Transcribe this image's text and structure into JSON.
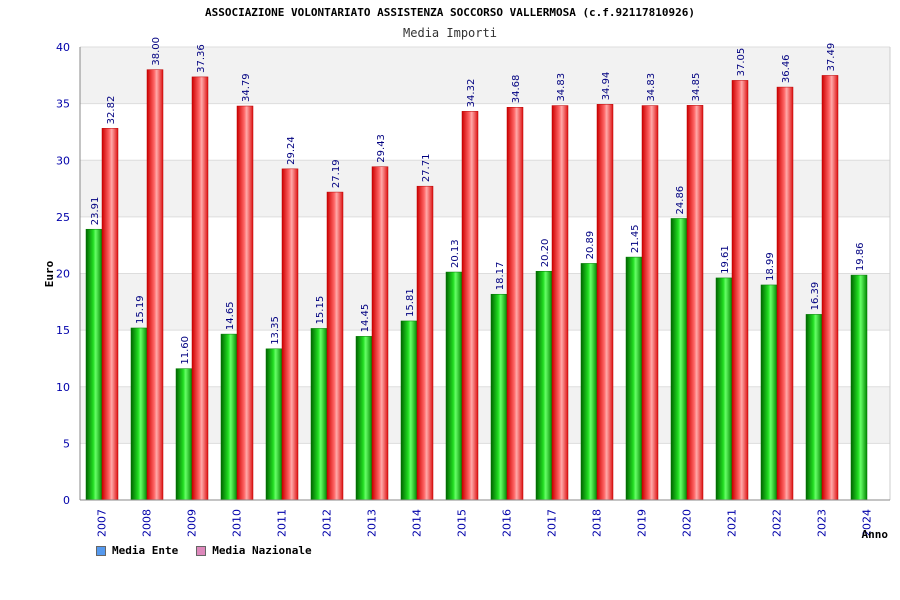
{
  "colors": {
    "ente": "#00aa00",
    "nazionale": "#ee2222",
    "label": "#000080",
    "axis_text": "#0000aa",
    "legend_ente": "#5599ee",
    "legend_nazionale": "#dd88bb"
  },
  "chart_data": {
    "type": "bar",
    "title": "ASSOCIAZIONE VOLONTARIATO ASSISTENZA SOCCORSO VALLERMOSA (c.f.92117810926)",
    "subtitle": "Media Importi",
    "xlabel": "Anno",
    "ylabel": "Euro",
    "ylim": [
      0,
      40
    ],
    "yticks": [
      "0",
      "5",
      "10",
      "15",
      "20",
      "25",
      "30",
      "35",
      "40"
    ],
    "categories": [
      "2007",
      "2008",
      "2009",
      "2010",
      "2011",
      "2012",
      "2013",
      "2014",
      "2015",
      "2016",
      "2017",
      "2018",
      "2019",
      "2020",
      "2021",
      "2022",
      "2023",
      "2024"
    ],
    "series": [
      {
        "name": "Media Ente",
        "values": [
          23.91,
          15.19,
          11.6,
          14.65,
          13.35,
          15.15,
          14.45,
          15.81,
          20.13,
          18.17,
          20.2,
          20.89,
          21.45,
          24.86,
          19.61,
          18.99,
          16.39,
          19.86
        ],
        "labels": [
          "23.91",
          "15.19",
          "11.60",
          "14.65",
          "13.35",
          "15.15",
          "14.45",
          "15.81",
          "20.13",
          "18.17",
          "20.20",
          "20.89",
          "21.45",
          "24.86",
          "19.61",
          "18.99",
          "16.39",
          "19.86"
        ]
      },
      {
        "name": "Media Nazionale",
        "values": [
          32.82,
          38.0,
          37.36,
          34.79,
          29.24,
          27.19,
          29.43,
          27.71,
          34.32,
          34.68,
          34.83,
          34.94,
          34.83,
          34.85,
          37.05,
          36.46,
          37.49,
          null
        ],
        "labels": [
          "32.82",
          "38.00",
          "37.36",
          "34.79",
          "29.24",
          "27.19",
          "29.43",
          "27.71",
          "34.32",
          "34.68",
          "34.83",
          "34.94",
          "34.83",
          "34.85",
          "37.05",
          "36.46",
          "37.49",
          ""
        ]
      }
    ],
    "legend": [
      "Media Ente",
      "Media Nazionale"
    ]
  }
}
